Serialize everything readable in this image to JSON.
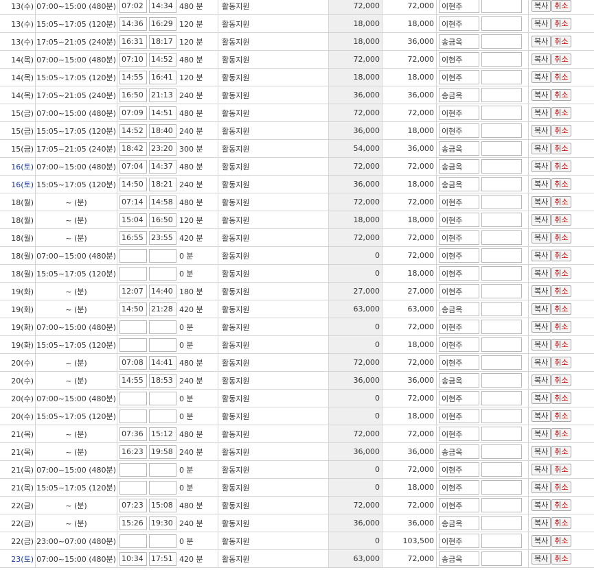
{
  "labels": {
    "copy": "복사",
    "cancel": "취소",
    "activity": "활동지원",
    "min_unit": "분"
  },
  "rows": [
    {
      "date": "13(수)",
      "shift": "07:00~15:00 (480분)",
      "start": "07:02",
      "end": "14:34",
      "mins": "480 분",
      "amount": "72,000",
      "total": "72,000",
      "worker": "이현주",
      "sat": false
    },
    {
      "date": "13(수)",
      "shift": "15:05~17:05 (120분)",
      "start": "14:36",
      "end": "16:29",
      "mins": "120 분",
      "amount": "18,000",
      "total": "18,000",
      "worker": "이현주",
      "sat": false
    },
    {
      "date": "13(수)",
      "shift": "17:05~21:05 (240분)",
      "start": "16:31",
      "end": "18:17",
      "mins": "120 분",
      "amount": "18,000",
      "total": "36,000",
      "worker": "송금옥",
      "sat": false
    },
    {
      "date": "14(목)",
      "shift": "07:00~15:00 (480분)",
      "start": "07:10",
      "end": "14:52",
      "mins": "480 분",
      "amount": "72,000",
      "total": "72,000",
      "worker": "이현주",
      "sat": false
    },
    {
      "date": "14(목)",
      "shift": "15:05~17:05 (120분)",
      "start": "14:55",
      "end": "16:41",
      "mins": "120 분",
      "amount": "18,000",
      "total": "18,000",
      "worker": "이현주",
      "sat": false
    },
    {
      "date": "14(목)",
      "shift": "17:05~21:05 (240분)",
      "start": "16:50",
      "end": "21:13",
      "mins": "240 분",
      "amount": "36,000",
      "total": "36,000",
      "worker": "송금옥",
      "sat": false
    },
    {
      "date": "15(금)",
      "shift": "07:00~15:00 (480분)",
      "start": "07:09",
      "end": "14:51",
      "mins": "480 분",
      "amount": "72,000",
      "total": "72,000",
      "worker": "이현주",
      "sat": false
    },
    {
      "date": "15(금)",
      "shift": "15:05~17:05 (120분)",
      "start": "14:52",
      "end": "18:40",
      "mins": "240 분",
      "amount": "36,000",
      "total": "18,000",
      "worker": "이현주",
      "sat": false
    },
    {
      "date": "15(금)",
      "shift": "17:05~21:05 (240분)",
      "start": "18:42",
      "end": "23:20",
      "mins": "300 분",
      "amount": "54,000",
      "total": "36,000",
      "worker": "송금옥",
      "sat": false
    },
    {
      "date": "16(토)",
      "shift": "07:00~15:00 (480분)",
      "start": "07:04",
      "end": "14:37",
      "mins": "480 분",
      "amount": "72,000",
      "total": "72,000",
      "worker": "송금옥",
      "sat": true
    },
    {
      "date": "16(토)",
      "shift": "15:05~17:05 (120분)",
      "start": "14:50",
      "end": "18:21",
      "mins": "240 분",
      "amount": "36,000",
      "total": "18,000",
      "worker": "송금옥",
      "sat": true
    },
    {
      "date": "18(월)",
      "shift": "~ (분)",
      "start": "07:14",
      "end": "14:58",
      "mins": "480 분",
      "amount": "72,000",
      "total": "72,000",
      "worker": "이현주",
      "sat": false
    },
    {
      "date": "18(월)",
      "shift": "~ (분)",
      "start": "15:04",
      "end": "16:50",
      "mins": "120 분",
      "amount": "18,000",
      "total": "18,000",
      "worker": "이현주",
      "sat": false
    },
    {
      "date": "18(월)",
      "shift": "~ (분)",
      "start": "16:55",
      "end": "23:55",
      "mins": "420 분",
      "amount": "72,000",
      "total": "72,000",
      "worker": "이현주",
      "sat": false
    },
    {
      "date": "18(월)",
      "shift": "07:00~15:00 (480분)",
      "start": "",
      "end": "",
      "mins": "0 분",
      "amount": "0",
      "total": "72,000",
      "worker": "이현주",
      "sat": false
    },
    {
      "date": "18(월)",
      "shift": "15:05~17:05 (120분)",
      "start": "",
      "end": "",
      "mins": "0 분",
      "amount": "0",
      "total": "18,000",
      "worker": "이현주",
      "sat": false
    },
    {
      "date": "19(화)",
      "shift": "~ (분)",
      "start": "12:07",
      "end": "14:40",
      "mins": "180 분",
      "amount": "27,000",
      "total": "27,000",
      "worker": "이현주",
      "sat": false
    },
    {
      "date": "19(화)",
      "shift": "~ (분)",
      "start": "14:50",
      "end": "21:28",
      "mins": "420 분",
      "amount": "63,000",
      "total": "63,000",
      "worker": "송금옥",
      "sat": false
    },
    {
      "date": "19(화)",
      "shift": "07:00~15:00 (480분)",
      "start": "",
      "end": "",
      "mins": "0 분",
      "amount": "0",
      "total": "72,000",
      "worker": "이현주",
      "sat": false
    },
    {
      "date": "19(화)",
      "shift": "15:05~17:05 (120분)",
      "start": "",
      "end": "",
      "mins": "0 분",
      "amount": "0",
      "total": "18,000",
      "worker": "이현주",
      "sat": false
    },
    {
      "date": "20(수)",
      "shift": "~ (분)",
      "start": "07:08",
      "end": "14:41",
      "mins": "480 분",
      "amount": "72,000",
      "total": "72,000",
      "worker": "이현주",
      "sat": false
    },
    {
      "date": "20(수)",
      "shift": "~ (분)",
      "start": "14:55",
      "end": "18:53",
      "mins": "240 분",
      "amount": "36,000",
      "total": "36,000",
      "worker": "송금옥",
      "sat": false
    },
    {
      "date": "20(수)",
      "shift": "07:00~15:00 (480분)",
      "start": "",
      "end": "",
      "mins": "0 분",
      "amount": "0",
      "total": "72,000",
      "worker": "이현주",
      "sat": false
    },
    {
      "date": "20(수)",
      "shift": "15:05~17:05 (120분)",
      "start": "",
      "end": "",
      "mins": "0 분",
      "amount": "0",
      "total": "18,000",
      "worker": "이현주",
      "sat": false
    },
    {
      "date": "21(목)",
      "shift": "~ (분)",
      "start": "07:36",
      "end": "15:12",
      "mins": "480 분",
      "amount": "72,000",
      "total": "72,000",
      "worker": "이현주",
      "sat": false
    },
    {
      "date": "21(목)",
      "shift": "~ (분)",
      "start": "16:23",
      "end": "19:58",
      "mins": "240 분",
      "amount": "36,000",
      "total": "36,000",
      "worker": "송금옥",
      "sat": false
    },
    {
      "date": "21(목)",
      "shift": "07:00~15:00 (480분)",
      "start": "",
      "end": "",
      "mins": "0 분",
      "amount": "0",
      "total": "72,000",
      "worker": "이현주",
      "sat": false
    },
    {
      "date": "21(목)",
      "shift": "15:05~17:05 (120분)",
      "start": "",
      "end": "",
      "mins": "0 분",
      "amount": "0",
      "total": "18,000",
      "worker": "이현주",
      "sat": false
    },
    {
      "date": "22(금)",
      "shift": "~ (분)",
      "start": "07:23",
      "end": "15:08",
      "mins": "480 분",
      "amount": "72,000",
      "total": "72,000",
      "worker": "이현주",
      "sat": false
    },
    {
      "date": "22(금)",
      "shift": "~ (분)",
      "start": "15:26",
      "end": "19:30",
      "mins": "240 분",
      "amount": "36,000",
      "total": "36,000",
      "worker": "송금옥",
      "sat": false
    },
    {
      "date": "22(금)",
      "shift": "23:00~07:00 (480분)",
      "start": "",
      "end": "",
      "mins": "0 분",
      "amount": "0",
      "total": "103,500",
      "worker": "이현주",
      "sat": false
    },
    {
      "date": "23(토)",
      "shift": "07:00~15:00 (480분)",
      "start": "10:34",
      "end": "17:51",
      "mins": "420 분",
      "amount": "63,000",
      "total": "72,000",
      "worker": "송금옥",
      "sat": true
    }
  ]
}
